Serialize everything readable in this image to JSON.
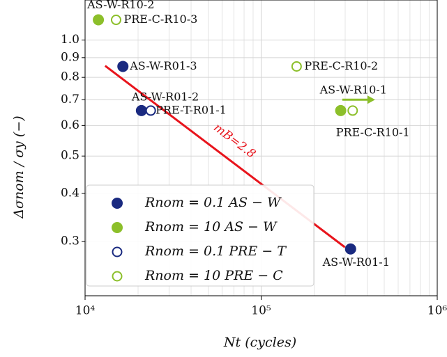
{
  "chart_data": {
    "type": "scatter",
    "xlabel": "Nt (cycles)",
    "ylabel": "Δσnom / σy (−)",
    "xscale": "log",
    "yscale": "log",
    "grid": true,
    "x_minor_grid": true,
    "xlim": [
      10000,
      1000000
    ],
    "ylim": [
      0.217,
      1.27
    ],
    "xticks": [
      {
        "value": 10000,
        "label": "10⁴"
      },
      {
        "value": 100000,
        "label": "10⁵"
      },
      {
        "value": 1000000,
        "label": "10⁶"
      }
    ],
    "yticks": [
      0.3,
      0.4,
      0.5,
      0.6,
      0.7,
      0.8,
      0.9,
      {
        "value": 1,
        "label": "1.0"
      }
    ],
    "legend": "lower left",
    "series": [
      {
        "name": "Rnom = 0.1 AS − W",
        "color": "#1a2a80",
        "filled": true,
        "x": [
          16400,
          20900,
          322000
        ],
        "values": [
          0.854,
          0.656,
          0.287
        ],
        "labels": [
          "AS-W-R01-3",
          "AS-W-R01-2",
          "AS-W-R01-1"
        ]
      },
      {
        "name": "Rnom = 10 AS − W",
        "color": "#8cbf2a",
        "filled": true,
        "x": [
          11900,
          283000
        ],
        "values": [
          1.128,
          0.656
        ],
        "labels": [
          "AS-W-R10-2",
          "AS-W-R10-1"
        ]
      },
      {
        "name": "Rnom = 0.1 PRE − T",
        "color": "#1a2a80",
        "filled": false,
        "x": [
          23600
        ],
        "values": [
          0.656
        ],
        "labels": [
          "PRE-T-R01-1"
        ]
      },
      {
        "name": "Rnom = 10 PRE − C",
        "color": "#8cbf2a",
        "filled": false,
        "x": [
          15000,
          159000,
          331000
        ],
        "values": [
          1.128,
          0.854,
          0.656
        ],
        "labels": [
          "PRE-C-R10-3",
          "PRE-C-R10-2",
          "PRE-C-R10-1"
        ]
      }
    ],
    "fit": {
      "x": [
        13000,
        299000
      ],
      "values": [
        0.857,
        0.29
      ],
      "label": "mB=2.8",
      "color": "#e8141c"
    },
    "arrow": {
      "x": [
        289000,
        444000
      ],
      "y": 0.7,
      "color": "#8cbf2a"
    }
  }
}
